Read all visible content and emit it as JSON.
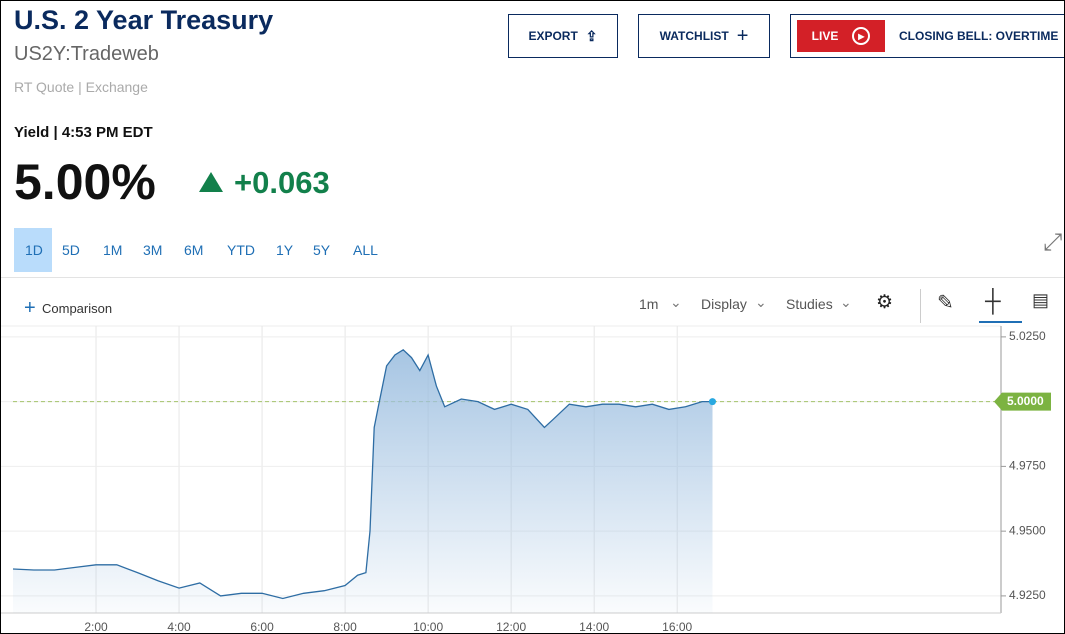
{
  "header": {
    "title": "U.S. 2 Year Treasury",
    "symbol": "US2Y:Tradeweb",
    "source": "RT Quote | Exchange",
    "quote_time": "Yield | 4:53 PM EDT",
    "price": "5.00%",
    "change": "+0.063"
  },
  "buttons": [
    "EXPORT",
    "WATCHLIST",
    "LIVE",
    "CLOSING BELL: OVERTIME"
  ],
  "ranges": [
    "1D",
    "5D",
    "1M",
    "3M",
    "6M",
    "YTD",
    "1Y",
    "5Y",
    "ALL"
  ],
  "toolbar": {
    "comparison": "Comparison",
    "interval": "1m",
    "display": "Display",
    "studies": "Studies"
  },
  "chart_data": {
    "type": "line",
    "color": "#2e6da4",
    "x": [
      0,
      0.5,
      1,
      1.5,
      2,
      2.5,
      3,
      3.5,
      4,
      4.5,
      5,
      5.5,
      6,
      6.5,
      7,
      7.5,
      8,
      8.3,
      8.5,
      8.6,
      8.7,
      8.8,
      9,
      9.2,
      9.4,
      9.6,
      9.8,
      10,
      10.2,
      10.4,
      10.8,
      11.2,
      11.6,
      12,
      12.4,
      12.8,
      13,
      13.4,
      13.8,
      14.2,
      14.6,
      15,
      15.4,
      15.8,
      16.2,
      16.6,
      16.85
    ],
    "values": [
      4.9354,
      4.935,
      4.935,
      4.936,
      4.937,
      4.937,
      4.934,
      4.9308,
      4.928,
      4.93,
      4.925,
      4.926,
      4.926,
      4.924,
      4.926,
      4.927,
      4.929,
      4.933,
      4.934,
      4.95,
      4.99,
      4.998,
      5.0138,
      5.018,
      5.02,
      5.017,
      5.012,
      5.018,
      5.006,
      4.998,
      5.001,
      5,
      4.997,
      4.999,
      4.997,
      4.99,
      4.993,
      4.999,
      4.998,
      4.999,
      4.999,
      4.998,
      4.999,
      4.997,
      4.998,
      5,
      5
    ],
    "last_value": 5,
    "last_value_label": "5.0000",
    "xlim": [
      0,
      23.8
    ],
    "xticks": [
      {
        "value": 2,
        "label": "2:00"
      },
      {
        "value": 4,
        "label": "4:00"
      },
      {
        "value": 6,
        "label": "6:00"
      },
      {
        "value": 8,
        "label": "8:00"
      },
      {
        "value": 10,
        "label": "10:00"
      },
      {
        "value": 12,
        "label": "12:00"
      },
      {
        "value": 14,
        "label": "14:00"
      },
      {
        "value": 16,
        "label": "16:00"
      }
    ],
    "ylim": [
      4.9184,
      5.0292
    ],
    "yticks": [
      {
        "value": 4.925,
        "label": "4.9250"
      },
      {
        "value": 4.95,
        "label": "4.9500"
      },
      {
        "value": 4.975,
        "label": "4.9750"
      },
      {
        "value": 5,
        "label": "5.0000"
      },
      {
        "value": 5.025,
        "label": "5.0250"
      }
    ],
    "grid": true
  }
}
